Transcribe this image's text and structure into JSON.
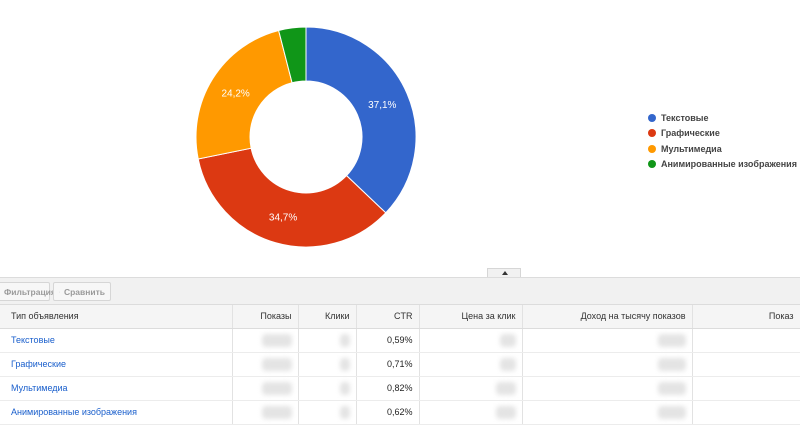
{
  "chart_data": {
    "type": "pie",
    "categories": [
      "Текстовые",
      "Графические",
      "Мультимедиа",
      "Анимированные изображения"
    ],
    "values": [
      37.1,
      34.7,
      24.2,
      4.0
    ],
    "labels": [
      "37,1%",
      "34,7%",
      "24,2%",
      ""
    ],
    "colors": [
      "#3366cc",
      "#dc3912",
      "#ff9900",
      "#109618"
    ],
    "legend": "right",
    "donut": true
  },
  "toolbar": {
    "filter_label": "Фильтрация",
    "compare_label": "Сравнить"
  },
  "table": {
    "columns": [
      "Тип объявления",
      "Показы",
      "Клики",
      "CTR",
      "Цена за клик",
      "Доход на тысячу показов",
      "Показ"
    ],
    "rows": [
      {
        "type": "Текстовые",
        "ctr": "0,59%"
      },
      {
        "type": "Графические",
        "ctr": "0,71%"
      },
      {
        "type": "Мультимедиа",
        "ctr": "0,82%"
      },
      {
        "type": "Анимированные изображения",
        "ctr": "0,62%"
      }
    ]
  }
}
